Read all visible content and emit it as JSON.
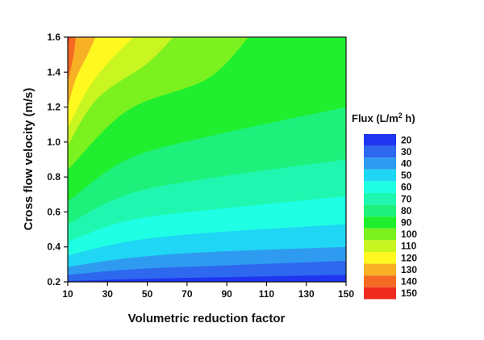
{
  "chart_data": {
    "type": "heatmap",
    "subtype": "filled-contour",
    "xlabel": "Volumetric reduction factor",
    "ylabel": "Cross flow velocity (m/s)",
    "xlim": [
      10,
      150
    ],
    "ylim": [
      0.2,
      1.6
    ],
    "x_ticks": [
      "10",
      "30",
      "50",
      "70",
      "90",
      "110",
      "130",
      "150"
    ],
    "y_ticks": [
      "0.2",
      "0.4",
      "0.6",
      "0.8",
      "1.0",
      "1.2",
      "1.4",
      "1.6"
    ],
    "legend_title": {
      "prefix": "Flux (L/m",
      "superscript": "2",
      "suffix": " h)"
    },
    "legend_position": "right",
    "levels": [
      {
        "label": "20",
        "color": "#1f35ef"
      },
      {
        "label": "30",
        "color": "#2d68ef"
      },
      {
        "label": "40",
        "color": "#2e9bf0"
      },
      {
        "label": "50",
        "color": "#1fd6f4"
      },
      {
        "label": "60",
        "color": "#1fffe3"
      },
      {
        "label": "70",
        "color": "#1ff7b1"
      },
      {
        "label": "80",
        "color": "#1ef07c"
      },
      {
        "label": "90",
        "color": "#1fef2e"
      },
      {
        "label": "100",
        "color": "#7bf11f"
      },
      {
        "label": "110",
        "color": "#c9f520"
      },
      {
        "label": "120",
        "color": "#fff91f"
      },
      {
        "label": "130",
        "color": "#f8b124"
      },
      {
        "label": "140",
        "color": "#f46a23"
      },
      {
        "label": "150",
        "color": "#f02a1f"
      }
    ],
    "contour_boundaries": [
      {
        "flux": 30,
        "y_at_x": [
          [
            10,
            0.205
          ],
          [
            40,
            0.215
          ],
          [
            80,
            0.225
          ],
          [
            150,
            0.24
          ]
        ]
      },
      {
        "flux": 40,
        "y_at_x": [
          [
            10,
            0.24
          ],
          [
            40,
            0.27
          ],
          [
            80,
            0.29
          ],
          [
            150,
            0.32
          ]
        ]
      },
      {
        "flux": 50,
        "y_at_x": [
          [
            10,
            0.285
          ],
          [
            40,
            0.335
          ],
          [
            80,
            0.37
          ],
          [
            150,
            0.4
          ]
        ]
      },
      {
        "flux": 60,
        "y_at_x": [
          [
            10,
            0.35
          ],
          [
            40,
            0.43
          ],
          [
            80,
            0.48
          ],
          [
            150,
            0.53
          ]
        ]
      },
      {
        "flux": 70,
        "y_at_x": [
          [
            10,
            0.43
          ],
          [
            40,
            0.55
          ],
          [
            80,
            0.61
          ],
          [
            150,
            0.69
          ]
        ]
      },
      {
        "flux": 80,
        "y_at_x": [
          [
            10,
            0.53
          ],
          [
            40,
            0.7
          ],
          [
            80,
            0.79
          ],
          [
            150,
            0.9
          ]
        ]
      },
      {
        "flux": 90,
        "y_at_x": [
          [
            10,
            0.66
          ],
          [
            40,
            0.9
          ],
          [
            80,
            1.03
          ],
          [
            150,
            1.2
          ]
        ]
      },
      {
        "flux": 100,
        "y_at_x": [
          [
            10,
            0.84
          ],
          [
            40,
            1.18
          ],
          [
            80,
            1.36
          ],
          [
            101,
            1.6
          ]
        ]
      },
      {
        "flux": 110,
        "y_at_x": [
          [
            10,
            0.98
          ],
          [
            25,
            1.25
          ],
          [
            50,
            1.45
          ],
          [
            63,
            1.6
          ]
        ]
      },
      {
        "flux": 120,
        "y_at_x": [
          [
            10,
            1.08
          ],
          [
            20,
            1.3
          ],
          [
            30,
            1.45
          ],
          [
            43,
            1.6
          ]
        ]
      },
      {
        "flux": 130,
        "y_at_x": [
          [
            10,
            1.2
          ],
          [
            14,
            1.36
          ],
          [
            20,
            1.5
          ],
          [
            24,
            1.6
          ]
        ]
      },
      {
        "flux": 140,
        "y_at_x": [
          [
            10,
            1.34
          ],
          [
            13,
            1.5
          ],
          [
            14,
            1.6
          ]
        ]
      },
      {
        "flux": 150,
        "y_at_x": [
          [
            10,
            1.55
          ],
          [
            11,
            1.6
          ]
        ]
      }
    ],
    "x": [],
    "y": []
  }
}
